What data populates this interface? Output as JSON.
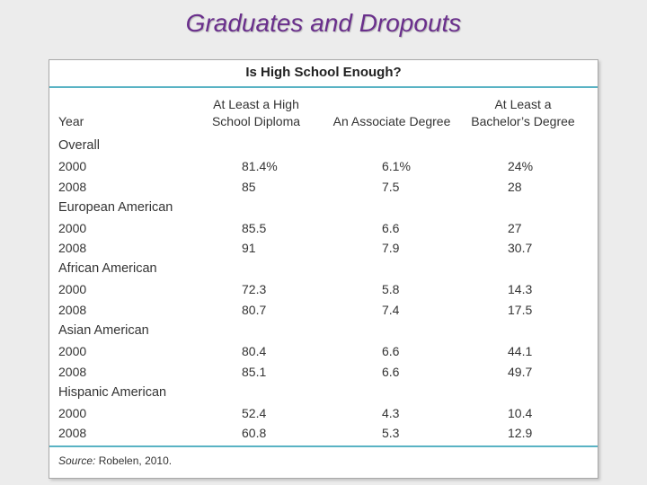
{
  "slide": {
    "title": "Graduates and Dropouts"
  },
  "table": {
    "title": "Is High School Enough?",
    "columns": {
      "year": "Year",
      "high_school": [
        "At Least a High",
        "School Diploma"
      ],
      "associate": "An Associate Degree",
      "bachelor": [
        "At Least a",
        "Bachelor’s Degree"
      ]
    },
    "rows": [
      {
        "group": "Overall"
      },
      {
        "year": "2000",
        "hs": "81.4%",
        "assoc": "6.1%",
        "bach": "24%"
      },
      {
        "year": "2008",
        "hs": "85",
        "assoc": "7.5",
        "bach": "28"
      },
      {
        "group": "European American"
      },
      {
        "year": "2000",
        "hs": "85.5",
        "assoc": "6.6",
        "bach": "27"
      },
      {
        "year": "2008",
        "hs": "91",
        "assoc": "7.9",
        "bach": "30.7"
      },
      {
        "group": "African American"
      },
      {
        "year": "2000",
        "hs": "72.3",
        "assoc": "5.8",
        "bach": "14.3"
      },
      {
        "year": "2008",
        "hs": "80.7",
        "assoc": "7.4",
        "bach": "17.5"
      },
      {
        "group": "Asian American"
      },
      {
        "year": "2000",
        "hs": "80.4",
        "assoc": "6.6",
        "bach": "44.1"
      },
      {
        "year": "2008",
        "hs": "85.1",
        "assoc": "6.6",
        "bach": "49.7"
      },
      {
        "group": "Hispanic American"
      },
      {
        "year": "2000",
        "hs": "52.4",
        "assoc": "4.3",
        "bach": "10.4"
      },
      {
        "year": "2008",
        "hs": "60.8",
        "assoc": "5.3",
        "bach": "12.9"
      }
    ],
    "source_label": "Source:",
    "source_text": "Robelen, 2010."
  }
}
